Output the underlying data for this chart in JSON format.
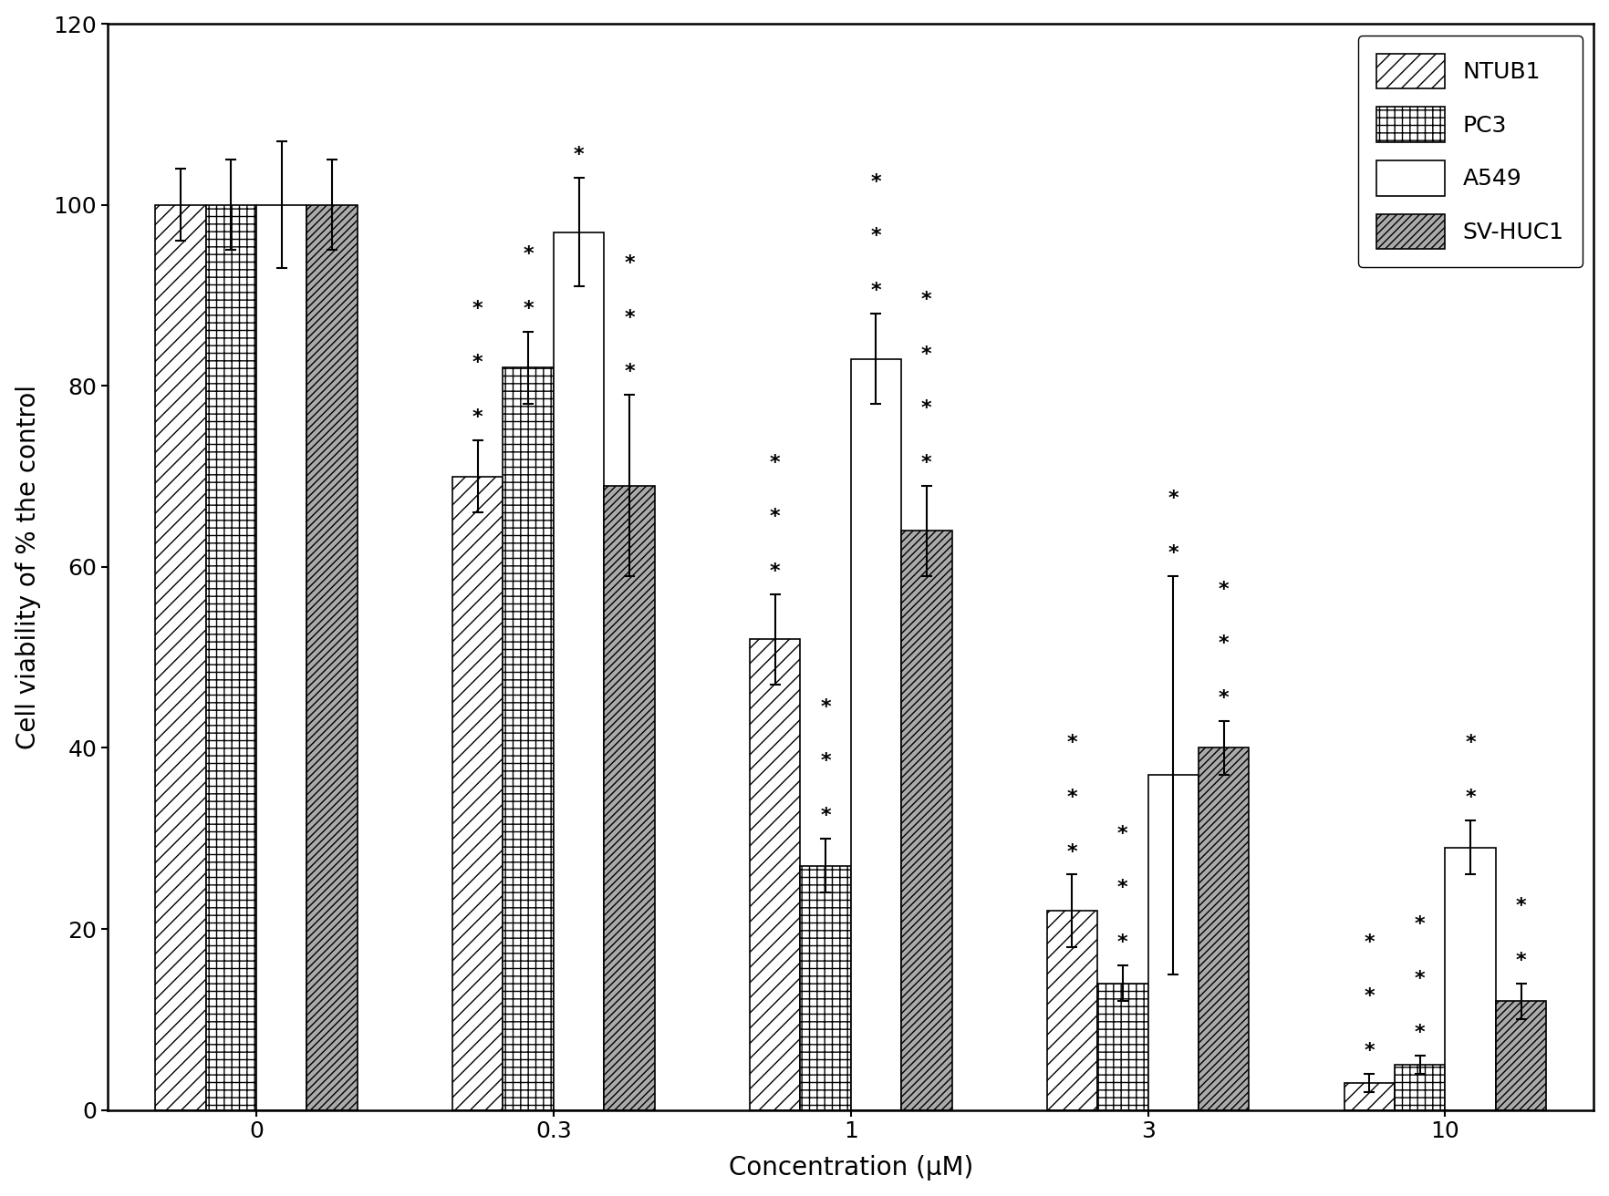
{
  "concentrations": [
    "0",
    "0.3",
    "1",
    "3",
    "10"
  ],
  "series": {
    "NTUB1": [
      100,
      70,
      52,
      22,
      3
    ],
    "PC3": [
      100,
      82,
      27,
      14,
      5
    ],
    "A549": [
      100,
      97,
      83,
      37,
      29
    ],
    "SV-HUC1": [
      100,
      69,
      64,
      40,
      12
    ]
  },
  "errors": {
    "NTUB1": [
      4,
      4,
      5,
      4,
      1
    ],
    "PC3": [
      5,
      4,
      3,
      2,
      1
    ],
    "A549": [
      7,
      6,
      5,
      22,
      3
    ],
    "SV-HUC1": [
      5,
      10,
      5,
      3,
      2
    ]
  },
  "significance": {
    "NTUB1": [
      "",
      "***",
      "***",
      "***",
      "***"
    ],
    "PC3": [
      "",
      "**",
      "***",
      "***",
      "***"
    ],
    "A549": [
      "",
      "*",
      "***",
      "**",
      "**"
    ],
    "SV-HUC1": [
      "",
      "***",
      "****",
      "***",
      "**"
    ]
  },
  "ylabel": "Cell viability of % the control",
  "xlabel": "Concentration (μM)",
  "ylim": [
    0,
    120
  ],
  "yticks": [
    0,
    20,
    40,
    60,
    80,
    100,
    120
  ],
  "legend_order": [
    "NTUB1",
    "PC3",
    "A549",
    "SV-HUC1"
  ],
  "bar_width": 0.17,
  "background_color": "#ffffff",
  "fontsize_axis": 20,
  "fontsize_tick": 18,
  "fontsize_legend": 18,
  "fontsize_sig": 16
}
